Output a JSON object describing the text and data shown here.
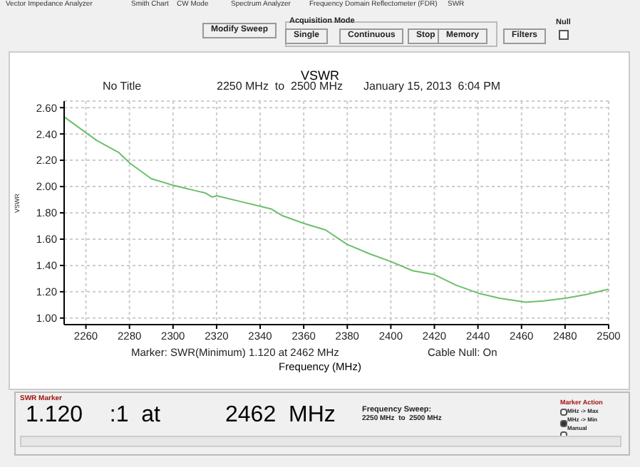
{
  "chart_data": {
    "type": "line",
    "title": "VSWR",
    "xlabel": "Frequency (MHz)",
    "ylabel": "VSWR",
    "annotations": [
      "No Title",
      "2250 MHz  to  2500 MHz",
      "January 15, 2013  6:04 PM",
      "Marker: SWR(Minimum) 1.120 at 2462 MHz",
      "Cable Null: On",
      "Vector Impedance Analyzer",
      "Smith Chart",
      "CW Mode",
      "Spectrum Analyzer",
      "Frequency Domain Reflectometer (FDR)",
      "SWR",
      "Modify Sweep",
      "Acquisition Mode",
      "Single",
      "Continuous",
      "Stop",
      "Memory",
      "Filters",
      "Null",
      "SWR Marker",
      "1.120",
      "  :1  at",
      "2462  MHz",
      "Frequency Sweep:",
      "2250 MHz  to  2500 MHz",
      "Marker Action",
      "MHz -> Max",
      "MHz -> Min",
      "Manual"
    ],
    "x": [
      2250,
      2260,
      2265,
      2275,
      2280,
      2290,
      2300,
      2305,
      2310,
      2315,
      2318,
      2320,
      2330,
      2340,
      2345,
      2350,
      2360,
      2370,
      2380,
      2390,
      2400,
      2410,
      2420,
      2430,
      2440,
      2450,
      2462,
      2470,
      2480,
      2490,
      2500
    ],
    "series": [
      {
        "color": "#6cbf6c",
        "values": [
          2.53,
          2.41,
          2.35,
          2.26,
          2.18,
          2.06,
          2.01,
          1.99,
          1.97,
          1.95,
          1.92,
          1.93,
          1.89,
          1.85,
          1.83,
          1.78,
          1.72,
          1.67,
          1.56,
          1.49,
          1.43,
          1.36,
          1.33,
          1.25,
          1.19,
          1.15,
          1.12,
          1.13,
          1.15,
          1.18,
          1.22
        ]
      }
    ],
    "xlim": [
      2250,
      2500
    ],
    "xticks": [
      2260,
      2280,
      2300,
      2320,
      2340,
      2360,
      2380,
      2400,
      2420,
      2440,
      2460,
      2480,
      2500
    ],
    "ylim": [
      0.95,
      2.65
    ],
    "yticks": [
      {
        "value": 1,
        "label": "1.00"
      },
      {
        "value": 1.2,
        "label": "1.20"
      },
      {
        "value": 1.4,
        "label": "1.40"
      },
      {
        "value": 1.6,
        "label": "1.60"
      },
      {
        "value": 1.8,
        "label": "1.80"
      },
      {
        "value": 2,
        "label": "2.00"
      },
      {
        "value": 2.2,
        "label": "2.20"
      },
      {
        "value": 2.4,
        "label": "2.40"
      },
      {
        "value": 2.6,
        "label": "2.60"
      }
    ],
    "grid": true,
    "marker": "none",
    "line_style": "solid"
  }
}
